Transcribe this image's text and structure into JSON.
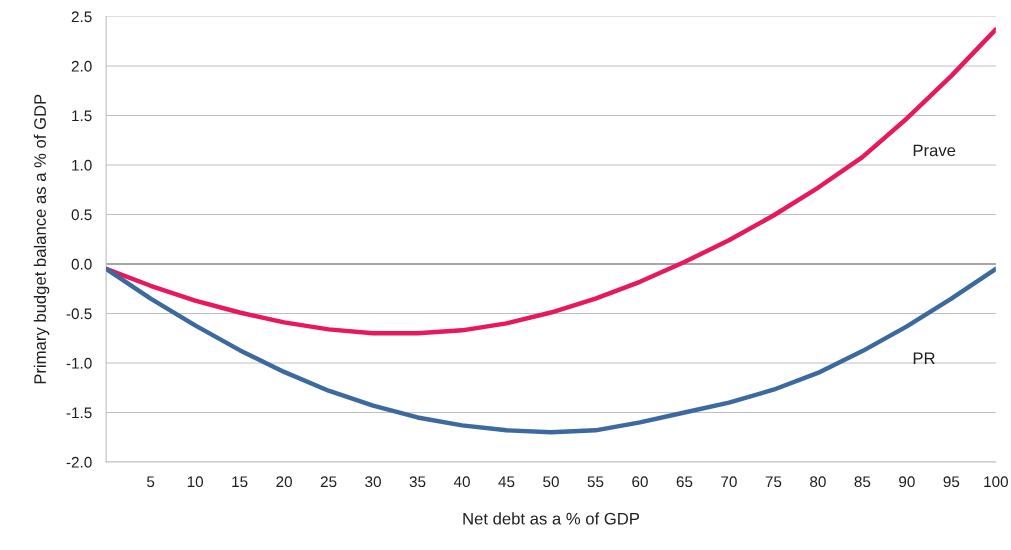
{
  "chart_data": {
    "type": "line",
    "xlabel": "Net debt as a % of GDP",
    "ylabel": "Primary budget balance as a % of GDP",
    "x": [
      0,
      5,
      10,
      15,
      20,
      25,
      30,
      35,
      40,
      45,
      50,
      55,
      60,
      65,
      70,
      75,
      80,
      85,
      90,
      95,
      100
    ],
    "series": [
      {
        "name": "Prave",
        "color": "#e8185f",
        "values": [
          -0.05,
          -0.22,
          -0.37,
          -0.49,
          -0.59,
          -0.66,
          -0.7,
          -0.7,
          -0.67,
          -0.6,
          -0.49,
          -0.35,
          -0.18,
          0.02,
          0.24,
          0.49,
          0.77,
          1.08,
          1.47,
          1.9,
          2.37
        ]
      },
      {
        "name": "PR",
        "color": "#3d6a9e",
        "values": [
          -0.05,
          -0.35,
          -0.62,
          -0.87,
          -1.09,
          -1.28,
          -1.43,
          -1.55,
          -1.63,
          -1.68,
          -1.7,
          -1.68,
          -1.6,
          -1.5,
          -1.4,
          -1.27,
          -1.1,
          -0.88,
          -0.63,
          -0.35,
          -0.05
        ]
      }
    ],
    "xlim": [
      0,
      100
    ],
    "xticks": [
      5,
      10,
      15,
      20,
      25,
      30,
      35,
      40,
      45,
      50,
      55,
      60,
      65,
      70,
      75,
      80,
      85,
      90,
      95,
      100
    ],
    "ylim": [
      -2.0,
      2.5
    ],
    "yticks": [
      {
        "value": -2.0,
        "label": "-2.0"
      },
      {
        "value": -1.5,
        "label": "-1.5"
      },
      {
        "value": -1.0,
        "label": "-1.0"
      },
      {
        "value": -0.5,
        "label": "-0.5"
      },
      {
        "value": 0.0,
        "label": "0.0"
      },
      {
        "value": 0.5,
        "label": "0.5"
      },
      {
        "value": 1.0,
        "label": "1.0"
      },
      {
        "value": 1.5,
        "label": "1.5"
      },
      {
        "value": 2.0,
        "label": "2.0"
      },
      {
        "value": 2.5,
        "label": "2.5"
      }
    ],
    "ref_lines": [
      {
        "axis": "y",
        "value": 0,
        "color": "#a6a6a6"
      }
    ],
    "grid": "y",
    "legend": false,
    "marker": "none",
    "line_style": "solid"
  }
}
